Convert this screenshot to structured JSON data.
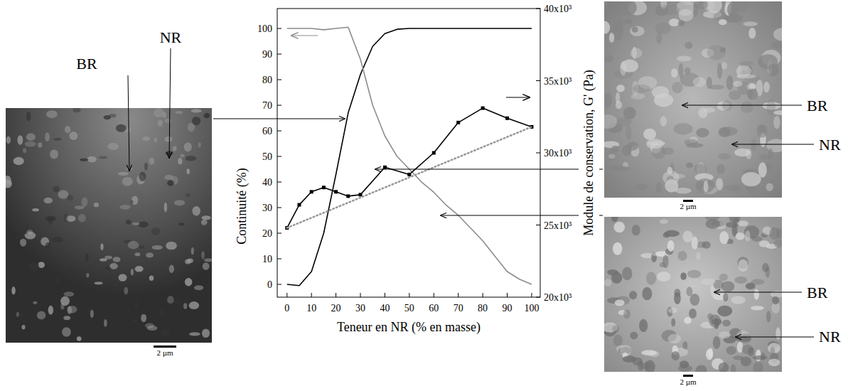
{
  "chart_data": {
    "type": "line",
    "x_label": "Teneur en NR (% en masse)",
    "y_label": "Continuité (%)",
    "y2_label": "Module de conservation, G' (Pa)",
    "xlim": [
      -4,
      103.5
    ],
    "xticks": [
      0,
      10,
      20,
      30,
      40,
      50,
      60,
      70,
      80,
      90,
      100
    ],
    "ylim": [
      -5,
      107.8
    ],
    "yticks": [
      0,
      10,
      20,
      30,
      40,
      50,
      60,
      70,
      80,
      90,
      100
    ],
    "y2lim": [
      20000,
      40000
    ],
    "y2ticks": [
      {
        "value": 20000,
        "label": "20x10³"
      },
      {
        "value": 25000,
        "label": "25x10³"
      },
      {
        "value": 30000,
        "label": "30x10³"
      },
      {
        "value": 35000,
        "label": "35x10³"
      },
      {
        "value": 40000,
        "label": "40x10³"
      }
    ],
    "series": [
      {
        "color": "#000000",
        "line_style": "solid",
        "x": [
          0,
          5,
          10,
          15,
          20,
          25,
          30,
          35,
          40,
          45,
          50,
          55,
          60,
          65,
          70,
          75,
          80,
          85,
          90,
          95,
          100
        ],
        "values": [
          0,
          -0.5,
          5,
          20,
          43,
          67,
          82,
          93,
          98,
          99.7,
          100,
          100,
          100,
          100,
          100,
          100,
          100,
          100,
          100,
          100,
          100
        ]
      },
      {
        "color": "#8c8c8c",
        "line_style": "solid",
        "x": [
          0,
          5,
          10,
          15,
          20,
          25,
          30,
          35,
          40,
          45,
          50,
          55,
          60,
          65,
          70,
          75,
          80,
          85,
          90,
          95,
          100
        ],
        "values": [
          100,
          100,
          100,
          99.5,
          100,
          100.5,
          88,
          70,
          58,
          50,
          45,
          40,
          36,
          31,
          27,
          22,
          17,
          11,
          5,
          2,
          0
        ]
      },
      {
        "color": "#000000",
        "line_style": "solid",
        "marker": "square",
        "axis": "y2",
        "x": [
          0,
          5,
          10,
          15,
          20,
          25,
          30,
          40,
          50,
          60,
          70,
          80,
          90,
          100
        ],
        "values": [
          24800,
          26400,
          27300,
          27600,
          27300,
          27000,
          27100,
          29000,
          28500,
          30000,
          32100,
          33100,
          32400,
          31800
        ]
      },
      {
        "color": "#999999",
        "line_style": "dotted",
        "axis": "y2",
        "x": [
          0,
          100
        ],
        "values": [
          24800,
          31800
        ]
      }
    ]
  },
  "micrographs": [
    {
      "labels": [
        "BR",
        "NR"
      ],
      "scale_bar": "2 µm"
    },
    {
      "labels": [
        "BR",
        "NR"
      ],
      "scale_bar": "2 µm"
    },
    {
      "labels": [
        "BR",
        "NR"
      ],
      "scale_bar": "2 µm"
    }
  ]
}
